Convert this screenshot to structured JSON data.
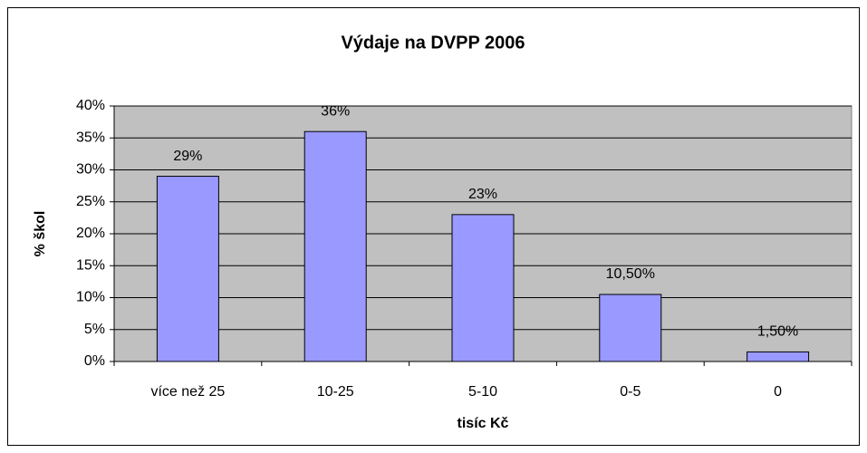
{
  "chart_data": {
    "type": "bar",
    "title": "Výdaje na DVPP 2006",
    "x_label": "tisíc Kč",
    "y_label": "% škol",
    "categories": [
      "více než 25",
      "10-25",
      "5-10",
      "0-5",
      "0"
    ],
    "values": [
      29,
      36,
      23,
      10.5,
      1.5
    ],
    "value_labels": [
      "29%",
      "36%",
      "23%",
      "10,50%",
      "1,50%"
    ],
    "color": "#9999ff",
    "ylim": [
      0,
      40
    ],
    "yticks": [
      {
        "value": 0,
        "label": "0%"
      },
      {
        "value": 5,
        "label": "5%"
      },
      {
        "value": 10,
        "label": "10%"
      },
      {
        "value": 15,
        "label": "15%"
      },
      {
        "value": 20,
        "label": "20%"
      },
      {
        "value": 25,
        "label": "25%"
      },
      {
        "value": 30,
        "label": "30%"
      },
      {
        "value": 35,
        "label": "35%"
      },
      {
        "value": 40,
        "label": "40%"
      }
    ],
    "grid": true
  }
}
